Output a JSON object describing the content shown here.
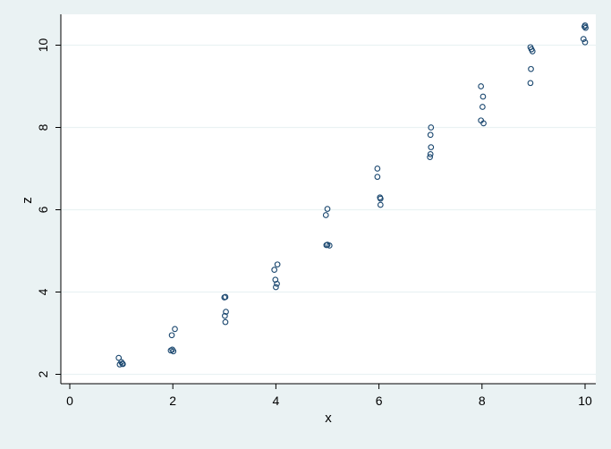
{
  "chart_data": {
    "type": "scatter",
    "title": "",
    "xlabel": "x",
    "ylabel": "z",
    "xlim": [
      0,
      10
    ],
    "ylim": [
      2,
      10
    ],
    "xticks": [
      "0",
      "2",
      "4",
      "6",
      "8",
      "10"
    ],
    "yticks": [
      "2",
      "4",
      "6",
      "8",
      "10"
    ],
    "grid": true,
    "colors": {
      "background": "#eaf2f3",
      "plot_area": "#ffffff",
      "grid": "#eaf2f3",
      "marker": "#1a476f"
    },
    "series": [
      {
        "points": [
          [
            0.95,
            2.4
          ],
          [
            0.97,
            2.24
          ],
          [
            1.0,
            2.3
          ],
          [
            1.02,
            2.26
          ],
          [
            1.03,
            2.25
          ],
          [
            1.96,
            2.58
          ],
          [
            1.98,
            2.95
          ],
          [
            1.99,
            2.6
          ],
          [
            2.01,
            2.56
          ],
          [
            2.04,
            3.1
          ],
          [
            3.0,
            3.87
          ],
          [
            3.02,
            3.88
          ],
          [
            3.01,
            3.42
          ],
          [
            3.03,
            3.52
          ],
          [
            3.02,
            3.27
          ],
          [
            3.97,
            4.54
          ],
          [
            4.03,
            4.67
          ],
          [
            3.99,
            4.3
          ],
          [
            4.02,
            4.2
          ],
          [
            4.0,
            4.12
          ],
          [
            4.97,
            5.87
          ],
          [
            5.0,
            6.02
          ],
          [
            4.98,
            5.14
          ],
          [
            5.0,
            5.15
          ],
          [
            5.04,
            5.13
          ],
          [
            5.97,
            7.0
          ],
          [
            5.97,
            6.8
          ],
          [
            6.02,
            6.3
          ],
          [
            6.03,
            6.27
          ],
          [
            6.03,
            6.12
          ],
          [
            7.01,
            8.0
          ],
          [
            7.0,
            7.82
          ],
          [
            7.01,
            7.52
          ],
          [
            7.0,
            7.35
          ],
          [
            6.99,
            7.28
          ],
          [
            7.98,
            9.0
          ],
          [
            8.02,
            8.75
          ],
          [
            8.01,
            8.5
          ],
          [
            7.98,
            8.17
          ],
          [
            8.03,
            8.1
          ],
          [
            8.94,
            9.95
          ],
          [
            8.96,
            9.9
          ],
          [
            8.98,
            9.85
          ],
          [
            8.95,
            9.42
          ],
          [
            8.94,
            9.08
          ],
          [
            10.0,
            10.48
          ],
          [
            10.01,
            10.42
          ],
          [
            9.97,
            10.15
          ],
          [
            10.0,
            10.07
          ],
          [
            9.99,
            10.45
          ]
        ]
      }
    ]
  }
}
